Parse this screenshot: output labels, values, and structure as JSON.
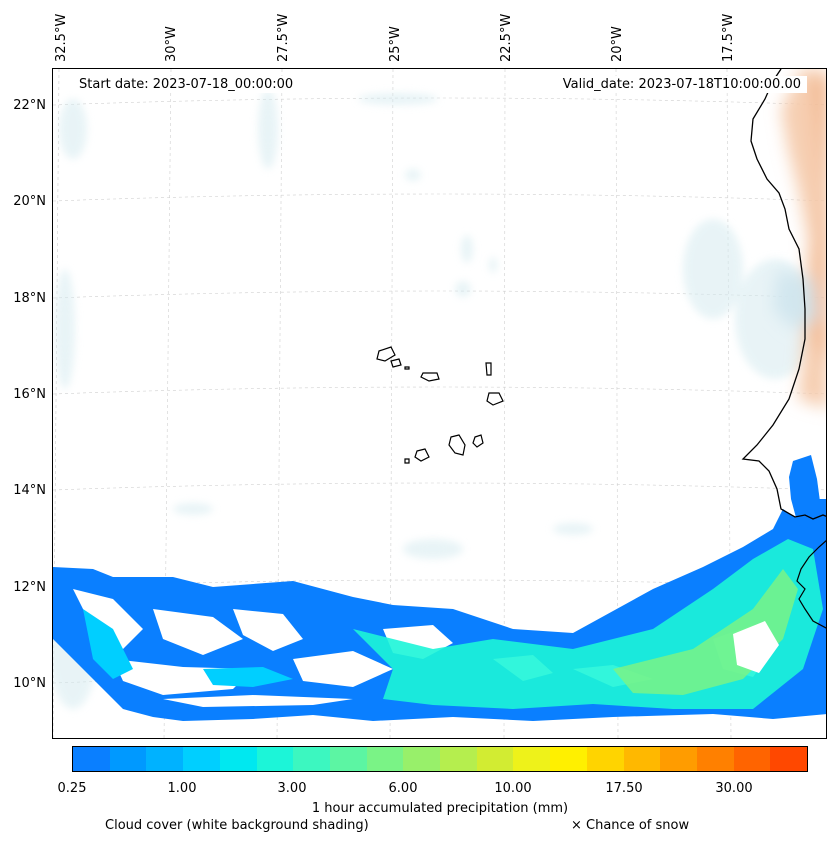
{
  "map": {
    "lon_labels": [
      "32.5°W",
      "30°W",
      "27.5°W",
      "25°W",
      "22.5°W",
      "20°W",
      "17.5°W"
    ],
    "lat_labels": [
      "22°N",
      "20°N",
      "18°N",
      "16°N",
      "14°N",
      "12°N",
      "10°N"
    ],
    "extent": {
      "lon": [
        -32.6,
        -15.2
      ],
      "lat": [
        8.9,
        22.8
      ]
    },
    "start_date_text": "Start date: 2023-07-18_00:00:00",
    "valid_date_text": "Valid_date: 2023-07-18T10:00:00.00"
  },
  "legend": {
    "colorbar_colors": [
      "#0a7fff",
      "#0099ff",
      "#00b2ff",
      "#00cfff",
      "#00e8f0",
      "#1cf5d8",
      "#3cf7c0",
      "#5cf5a3",
      "#7af386",
      "#98f06a",
      "#b5ee4e",
      "#d2ec32",
      "#eef21a",
      "#fff000",
      "#ffd400",
      "#ffb800",
      "#ff9c00",
      "#ff8000",
      "#ff6400",
      "#ff4800"
    ],
    "colorbar_ticks": [
      "0.25",
      "1.00",
      "3.00",
      "6.00",
      "10.00",
      "17.50",
      "30.00"
    ],
    "colorbar_label": "1 hour accumulated precipitation (mm)",
    "cloud_caption": "Cloud cover (white background shading)",
    "snow_caption": "× Chance of snow"
  },
  "colors": {
    "precip_low": "#0a7fff",
    "precip_mid": "#1cf5d8",
    "precip_high": "#7af386",
    "cloud_tint": "#d6ebf0",
    "warm_tint": "#f5c9a8"
  }
}
